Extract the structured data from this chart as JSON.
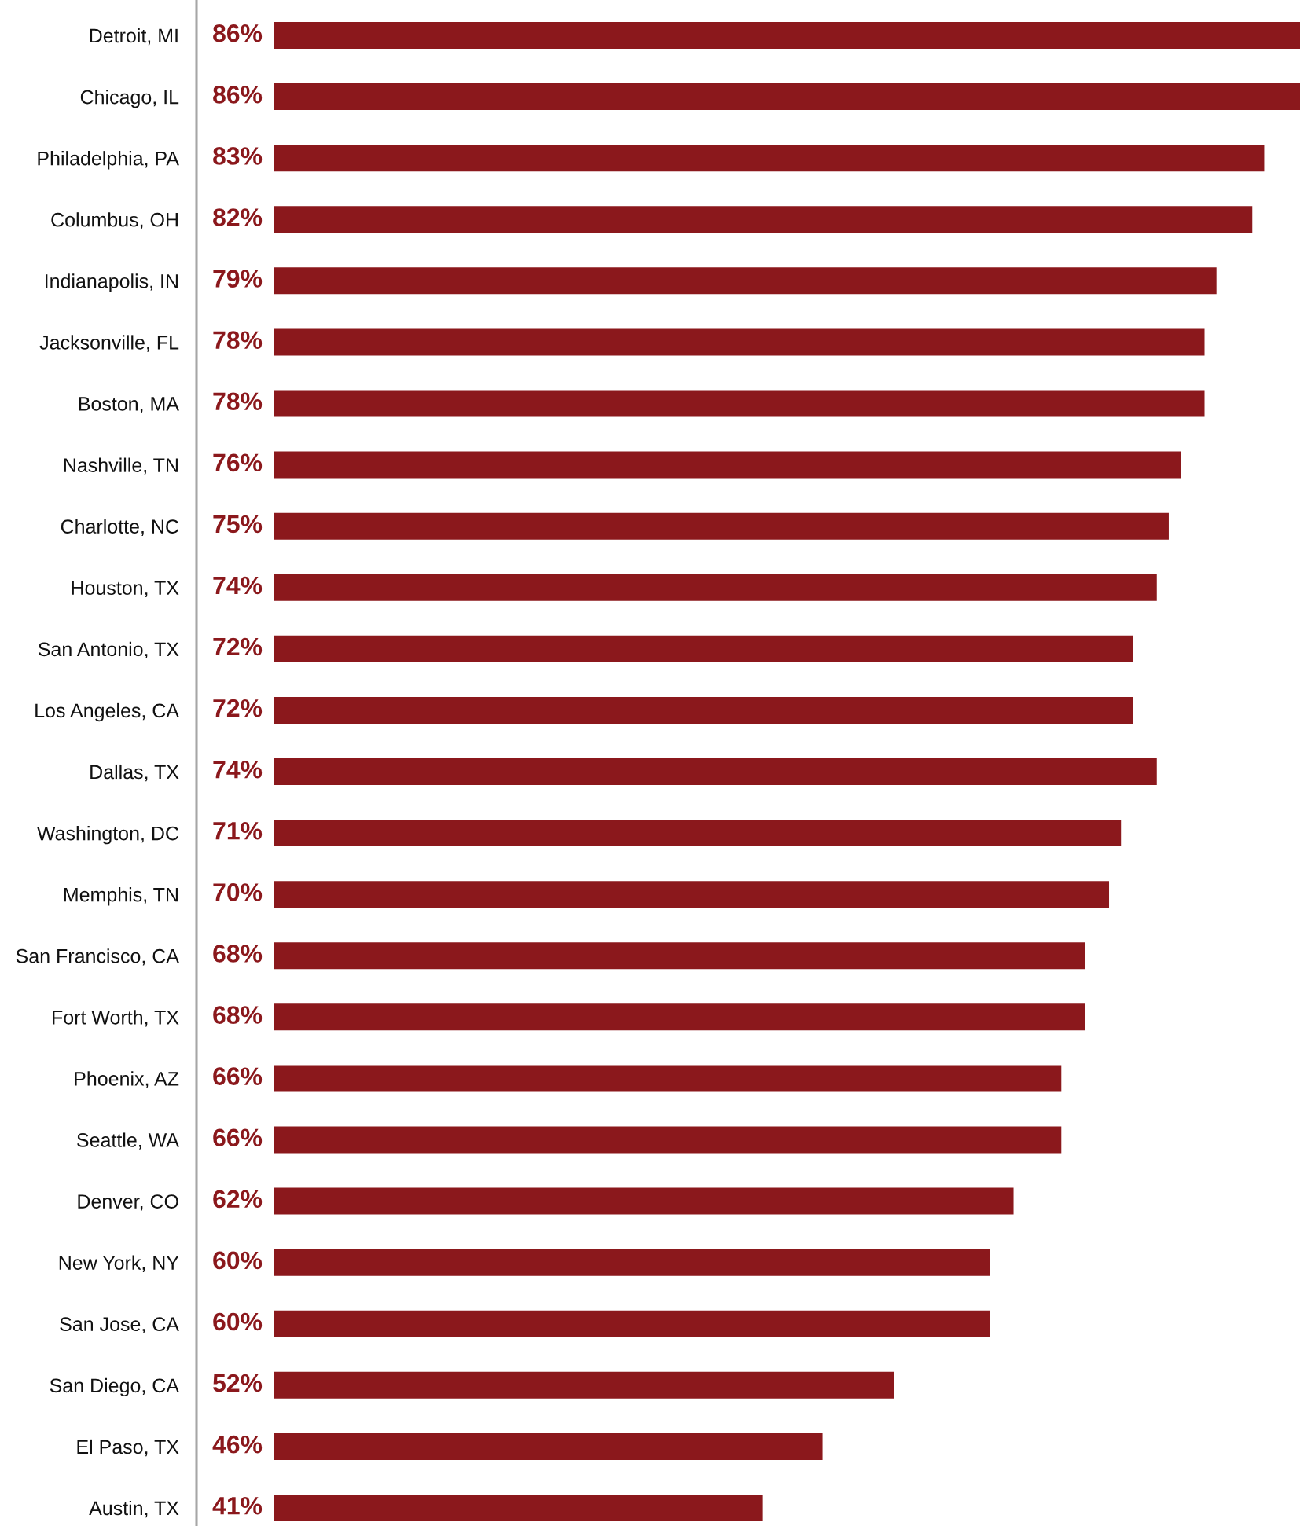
{
  "chart_data": {
    "type": "bar",
    "orientation": "horizontal",
    "tick_labels": "y",
    "color": "#8b181c",
    "categories": [
      "Detroit, MI",
      "Chicago, IL",
      "Philadelphia, PA",
      "Columbus, OH",
      "Indianapolis, IN",
      "Jacksonville, FL",
      "Boston, MA",
      "Nashville, TN",
      "Charlotte, NC",
      "Houston, TX",
      "San Antonio, TX",
      "Los Angeles, CA",
      "Dallas, TX",
      "Washington, DC",
      "Memphis, TN",
      "San Francisco, CA",
      "Fort Worth, TX",
      "Phoenix, AZ",
      "Seattle, WA",
      "Denver, CO",
      "New York, NY",
      "San Jose, CA",
      "San Diego, CA",
      "El Paso, TX",
      "Austin, TX"
    ],
    "values": [
      86,
      86,
      83,
      82,
      79,
      78,
      78,
      76,
      75,
      74,
      72,
      72,
      74,
      71,
      70,
      68,
      68,
      66,
      66,
      62,
      60,
      60,
      52,
      46,
      41
    ],
    "value_labels": [
      "86%",
      "86%",
      "83%",
      "82%",
      "79%",
      "78%",
      "78%",
      "76%",
      "75%",
      "74%",
      "72%",
      "72%",
      "74%",
      "71%",
      "70%",
      "68%",
      "68%",
      "66%",
      "66%",
      "62%",
      "60%",
      "60%",
      "52%",
      "46%",
      "41%"
    ]
  }
}
